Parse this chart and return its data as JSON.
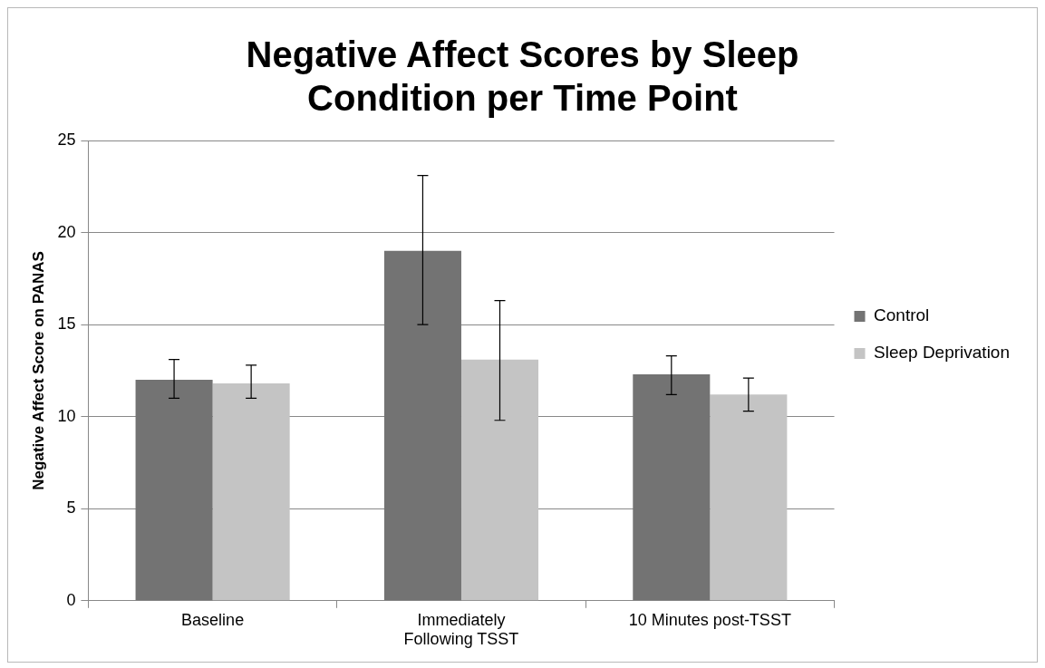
{
  "chart_data": {
    "type": "bar",
    "title": "Negative Affect Scores by Sleep Condition per Time Point",
    "ylabel": "Negative Affect Score on PANAS",
    "categories": [
      "Baseline",
      "Immediately Following TSST",
      "10 Minutes post-TSST"
    ],
    "series": [
      {
        "name": "Control",
        "color": "#737373",
        "values": [
          12.0,
          19.0,
          12.3
        ],
        "errors": [
          [
            11.0,
            13.1
          ],
          [
            15.0,
            23.1
          ],
          [
            11.2,
            13.3
          ]
        ]
      },
      {
        "name": "Sleep Deprivation",
        "color": "#c4c4c4",
        "values": [
          11.8,
          13.1,
          11.2
        ],
        "errors": [
          [
            11.0,
            12.8
          ],
          [
            9.8,
            16.3
          ],
          [
            10.3,
            12.1
          ]
        ]
      }
    ],
    "ylim": [
      0,
      25
    ],
    "yticks": [
      0,
      5,
      10,
      15,
      20,
      25
    ],
    "grid": "y",
    "legend": "right"
  }
}
